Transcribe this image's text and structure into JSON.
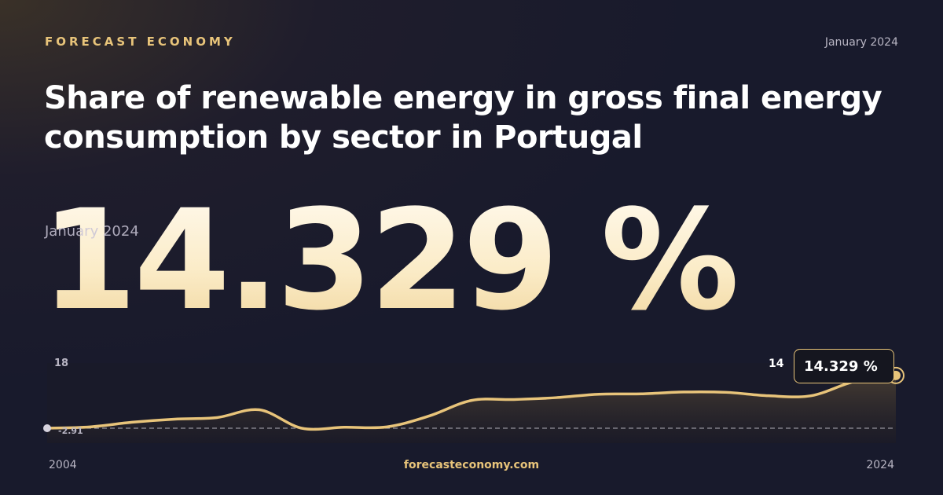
{
  "header": {
    "brand": "FORECAST ECONOMY",
    "date": "January 2024",
    "title": "Share of renewable energy in gross final energy consumption by sector in Portugal"
  },
  "highlight": {
    "value": "14.329 %",
    "date": "January 2024"
  },
  "footer": {
    "start_year": "2004",
    "end_year": "2024",
    "site": "forecasteconomy.com"
  },
  "colors": {
    "accent": "#e8c47a",
    "background": "#1b1b2b"
  },
  "chart_data": {
    "type": "area",
    "title": "Share of renewable energy in gross final energy consumption by sector in Portugal",
    "x": [
      2004,
      2005,
      2006,
      2007,
      2008,
      2009,
      2010,
      2011,
      2012,
      2013,
      2014,
      2015,
      2016,
      2017,
      2018,
      2019,
      2020,
      2021,
      2022,
      2023,
      2024
    ],
    "values": [
      -2.91,
      -2.5,
      -1.0,
      0.0,
      0.5,
      3.0,
      -2.91,
      -2.6,
      -2.5,
      1.0,
      6.0,
      6.3,
      6.9,
      8.0,
      8.1,
      8.7,
      8.6,
      7.5,
      7.5,
      12.0,
      14.329
    ],
    "ylim": [
      -2.91,
      18
    ],
    "ytick_labels": [
      "18",
      "-2.91"
    ],
    "xtick_labels": [
      "2004",
      "2024"
    ],
    "last_value_label": "14.329 %",
    "last_tick_label": "14",
    "baseline_label": "-2.91"
  }
}
